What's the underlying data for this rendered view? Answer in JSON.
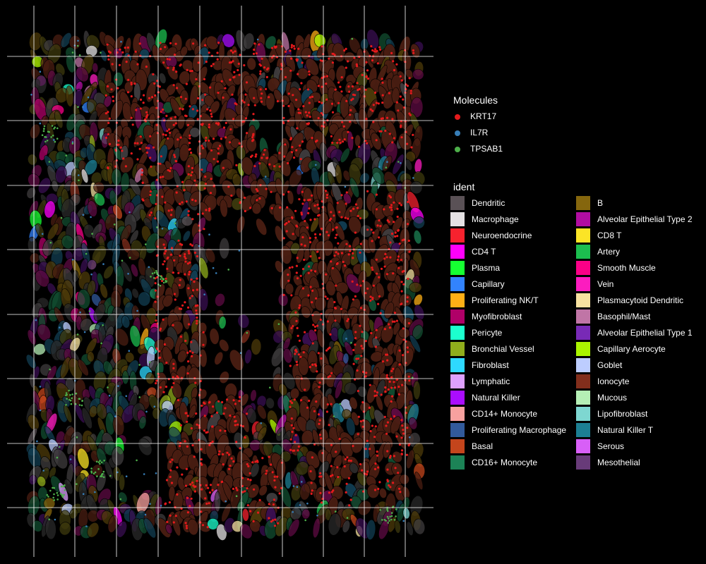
{
  "chart_data": {
    "type": "scatter",
    "title": "",
    "xlabel": "",
    "ylabel": "",
    "grid": true,
    "background": "#000000",
    "grid_color": "#ffffff",
    "legend_placement": "right",
    "molecule_legend": {
      "title": "Molecules",
      "items": [
        {
          "label": "KRT17",
          "color": "#e41a1c"
        },
        {
          "label": "IL7R",
          "color": "#377eb8"
        },
        {
          "label": "TPSAB1",
          "color": "#4daf4a"
        }
      ]
    },
    "ident_legend": {
      "title": "ident",
      "items": [
        {
          "label": "Dendritic",
          "color": "#5a5156"
        },
        {
          "label": "Macrophage",
          "color": "#e4e1e3"
        },
        {
          "label": "Neuroendocrine",
          "color": "#f6222e"
        },
        {
          "label": "CD4 T",
          "color": "#fe00fa"
        },
        {
          "label": "Plasma",
          "color": "#16ff32"
        },
        {
          "label": "Capillary",
          "color": "#3283fe"
        },
        {
          "label": "Proliferating NK/T",
          "color": "#feaf16"
        },
        {
          "label": "Myofibroblast",
          "color": "#b00068"
        },
        {
          "label": "Pericyte",
          "color": "#1cffce"
        },
        {
          "label": "Bronchial Vessel",
          "color": "#90ad1c"
        },
        {
          "label": "Fibroblast",
          "color": "#2ed9ff"
        },
        {
          "label": "Lymphatic",
          "color": "#dea0fd"
        },
        {
          "label": "Natural Killer",
          "color": "#aa0dfe"
        },
        {
          "label": "CD14+ Monocyte",
          "color": "#f8a19f"
        },
        {
          "label": "Proliferating Macrophage",
          "color": "#325a9b"
        },
        {
          "label": "Basal",
          "color": "#c4451c"
        },
        {
          "label": "CD16+ Monocyte",
          "color": "#1c8356"
        },
        {
          "label": "B",
          "color": "#85660d"
        },
        {
          "label": "Alveolar Epithelial Type 2",
          "color": "#b10da1"
        },
        {
          "label": "CD8 T",
          "color": "#fbe426"
        },
        {
          "label": "Artery",
          "color": "#1cbe4f"
        },
        {
          "label": "Smooth Muscle",
          "color": "#fa0087"
        },
        {
          "label": "Vein",
          "color": "#fc1cbf"
        },
        {
          "label": "Plasmacytoid Dendritic",
          "color": "#f7e1a0"
        },
        {
          "label": "Basophil/Mast",
          "color": "#c075a6"
        },
        {
          "label": "Alveolar Epithelial Type 1",
          "color": "#782ab6"
        },
        {
          "label": "Capillary Aerocyte",
          "color": "#aaf400"
        },
        {
          "label": "Goblet",
          "color": "#bdcdff"
        },
        {
          "label": "Ionocyte",
          "color": "#822e1c"
        },
        {
          "label": "Mucous",
          "color": "#b5efb5"
        },
        {
          "label": "Lipofibroblast",
          "color": "#7ed7d1"
        },
        {
          "label": "Natural Killer T",
          "color": "#1c7f93"
        },
        {
          "label": "Serous",
          "color": "#d85ff7"
        },
        {
          "label": "Mesothelial",
          "color": "#683b79"
        }
      ]
    },
    "dominant_tissue_color": "#4a1e12",
    "secondary_tissue_colors": [
      "#5e0b43",
      "#3d3a0e",
      "#3f3c3e",
      "#2a2a2a",
      "#114d30",
      "#3a0f52",
      "#113d52",
      "#4d3b0a"
    ]
  }
}
